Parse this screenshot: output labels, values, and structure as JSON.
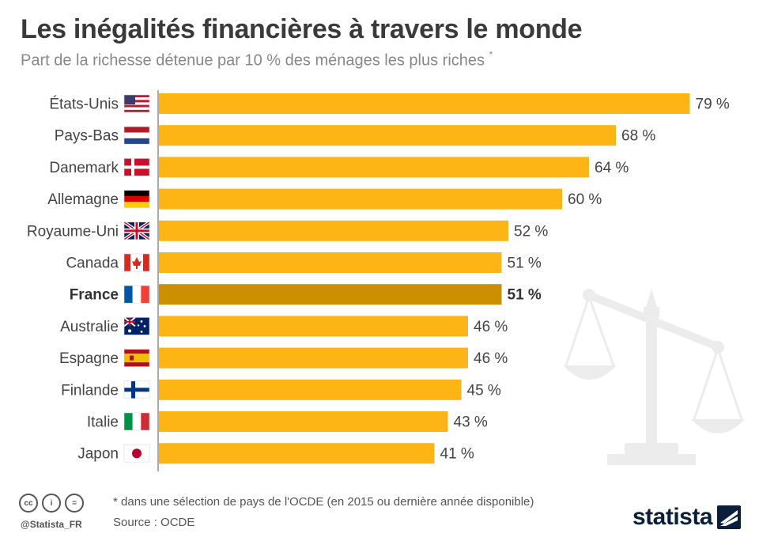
{
  "title": "Les inégalités financières à travers le monde",
  "subtitle": "Part de la richesse détenue par 10 % des ménages les plus riches",
  "subtitle_mark": "*",
  "colors": {
    "bar": "#fdb515",
    "highlight_bar": "#cc8f00",
    "axis": "#555555",
    "watermark": "#ececec"
  },
  "chart_data": {
    "type": "bar",
    "orientation": "horizontal",
    "unit": "%",
    "xlim": [
      0,
      80
    ],
    "categories": [
      "États-Unis",
      "Pays-Bas",
      "Danemark",
      "Allemagne",
      "Royaume-Uni",
      "Canada",
      "France",
      "Australie",
      "Espagne",
      "Finlande",
      "Italie",
      "Japon"
    ],
    "values": [
      79,
      68,
      64,
      60,
      52,
      51,
      51,
      46,
      46,
      45,
      43,
      41
    ],
    "value_labels": [
      "79 %",
      "68 %",
      "64 %",
      "60 %",
      "52 %",
      "51 %",
      "51 %",
      "46 %",
      "46 %",
      "45 %",
      "43 %",
      "41 %"
    ],
    "highlight": "France",
    "flags": [
      "us-flag",
      "nl-flag",
      "dk-flag",
      "de-flag",
      "gb-flag",
      "ca-flag",
      "fr-flag",
      "au-flag",
      "es-flag",
      "fi-flag",
      "it-flag",
      "jp-flag"
    ]
  },
  "footer": {
    "note": "* dans une sélection de pays de l'OCDE (en 2015 ou dernière année disponible)",
    "source": "Source : OCDE",
    "handle": "@Statista_FR",
    "license_icons": [
      "cc-icon",
      "by-icon",
      "nd-icon"
    ],
    "license_glyphs": [
      "cc",
      "i",
      "="
    ]
  },
  "logo": {
    "text": "statista"
  }
}
